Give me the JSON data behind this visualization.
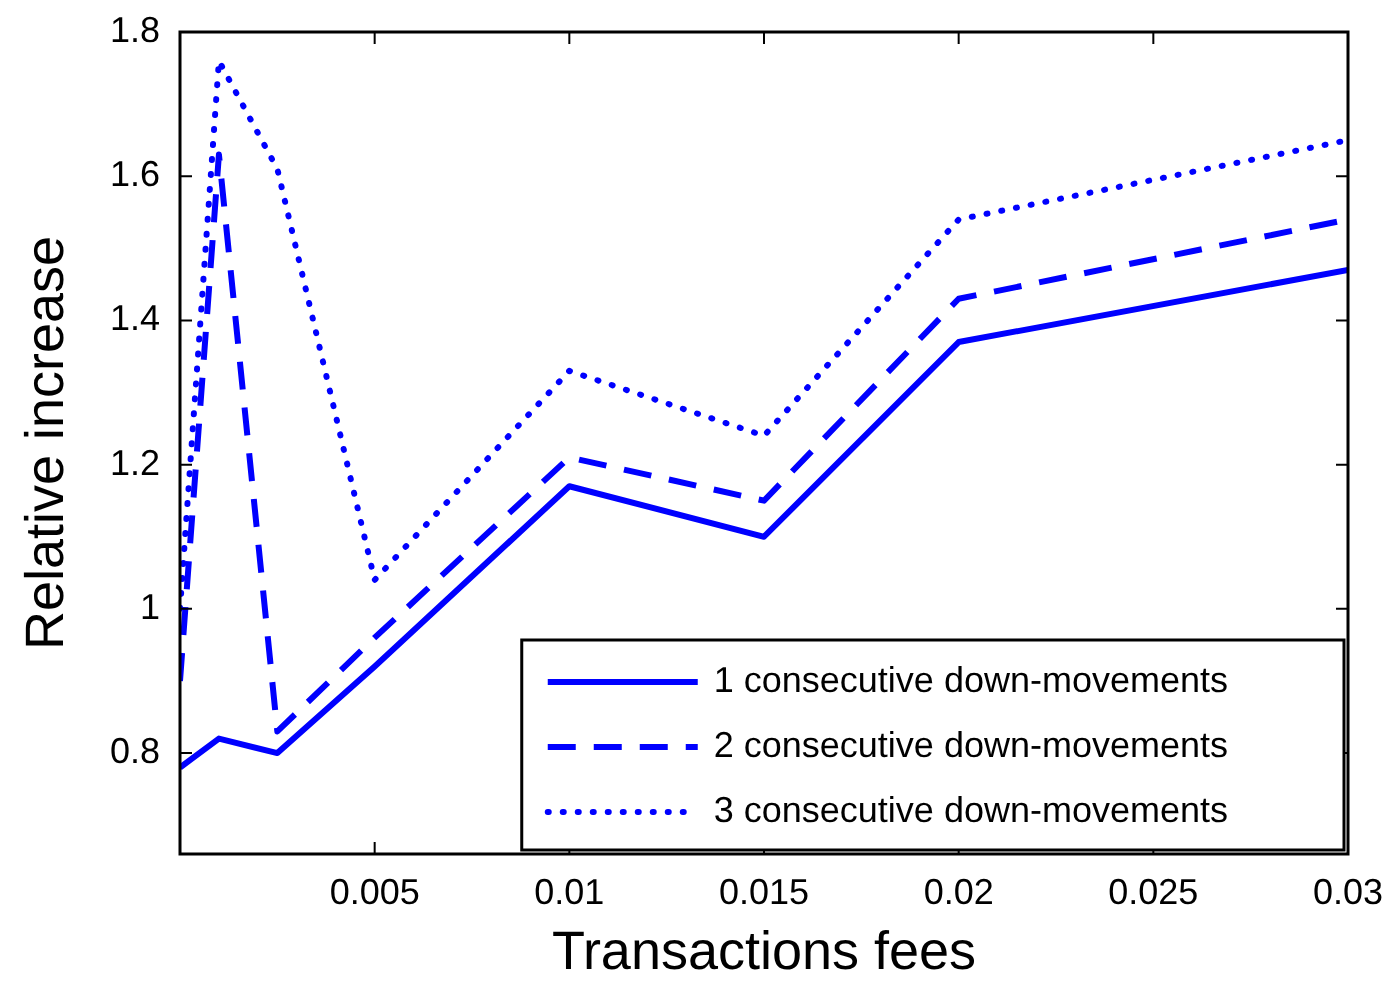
{
  "chart_data": {
    "type": "line",
    "xlabel": "Transactions fees",
    "ylabel": "Relative increase",
    "x": [
      0,
      0.001,
      0.0025,
      0.005,
      0.01,
      0.015,
      0.02,
      0.03
    ],
    "series": [
      {
        "name": "1 consecutive down-movements",
        "color": "#0000ff",
        "line_style": "solid",
        "values": [
          0.78,
          0.82,
          0.8,
          0.92,
          1.17,
          1.1,
          1.37,
          1.47
        ]
      },
      {
        "name": "2 consecutive down-movements",
        "color": "#0000ff",
        "line_style": "dashed",
        "values": [
          0.9,
          1.63,
          0.83,
          0.96,
          1.21,
          1.15,
          1.43,
          1.54
        ]
      },
      {
        "name": "3 consecutive down-movements",
        "color": "#0000ff",
        "line_style": "dotted",
        "values": [
          1,
          1.76,
          1.61,
          1.04,
          1.33,
          1.24,
          1.54,
          1.65
        ]
      }
    ],
    "xlim": [
      0,
      0.03
    ],
    "xticks": [
      0.005,
      0.01,
      0.015,
      0.02,
      0.025,
      0.03
    ],
    "ylim": [
      0.66,
      1.8
    ],
    "yticks": [
      0.8,
      1,
      1.2,
      1.4,
      1.6,
      1.8
    ],
    "legend": "bottom right"
  }
}
